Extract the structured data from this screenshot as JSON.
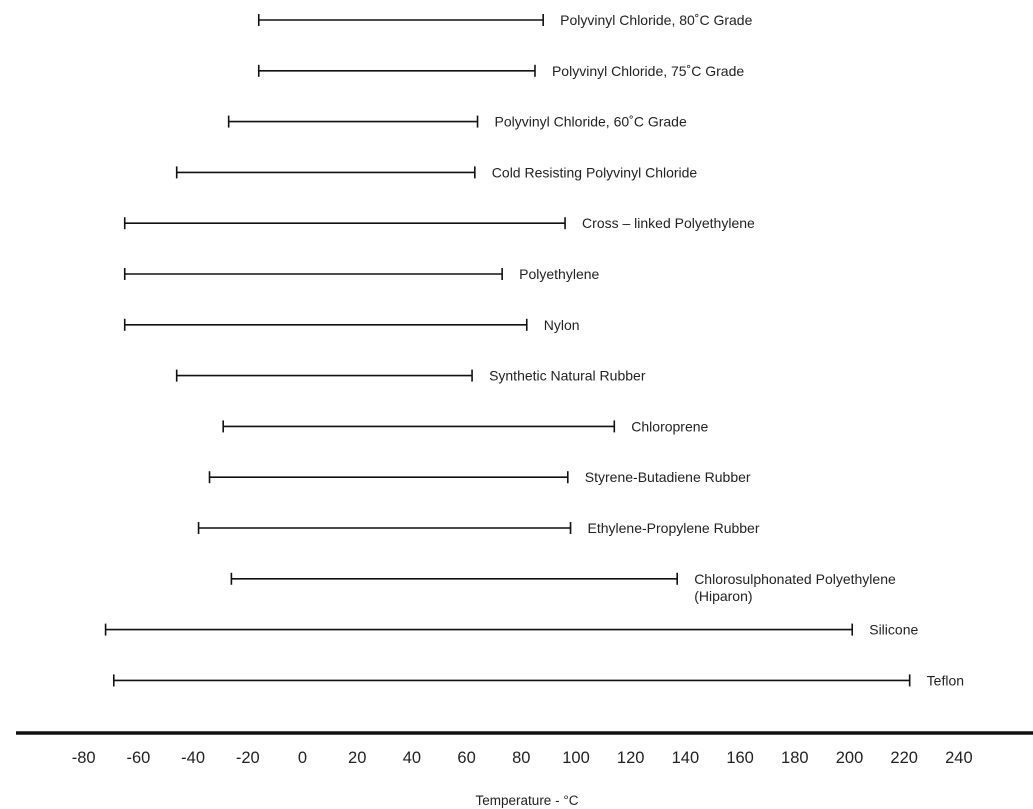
{
  "chart_data": {
    "type": "range_bar",
    "xlabel": "Temperature - °C",
    "xlim": [
      -80,
      240
    ],
    "xticks": [
      -80,
      -60,
      -40,
      -20,
      0,
      20,
      40,
      60,
      80,
      100,
      120,
      140,
      160,
      180,
      200,
      220,
      240
    ],
    "grid": false,
    "series": [
      {
        "name": "Polyvinyl Chloride, 80˚C Grade",
        "min": -16,
        "max": 88
      },
      {
        "name": "Polyvinyl Chloride, 75˚C Grade",
        "min": -16,
        "max": 85
      },
      {
        "name": "Polyvinyl Chloride, 60˚C Grade",
        "min": -27,
        "max": 64
      },
      {
        "name": "Cold Resisting Polyvinyl Chloride",
        "min": -46,
        "max": 63
      },
      {
        "name": "Cross – linked Polyethylene",
        "min": -65,
        "max": 96
      },
      {
        "name": "Polyethylene",
        "min": -65,
        "max": 73
      },
      {
        "name": "Nylon",
        "min": -65,
        "max": 82
      },
      {
        "name": "Synthetic Natural Rubber",
        "min": -46,
        "max": 62
      },
      {
        "name": "Chloroprene",
        "min": -29,
        "max": 114
      },
      {
        "name": "Styrene-Butadiene Rubber",
        "min": -34,
        "max": 97
      },
      {
        "name": "Ethylene-Propylene Rubber",
        "min": -38,
        "max": 98
      },
      {
        "name": "Chlorosulphonated Polyethylene\n(Hiparon)",
        "min": -26,
        "max": 137
      },
      {
        "name": "Silicone",
        "min": -72,
        "max": 201
      },
      {
        "name": "Teflon",
        "min": -69,
        "max": 222
      }
    ]
  }
}
